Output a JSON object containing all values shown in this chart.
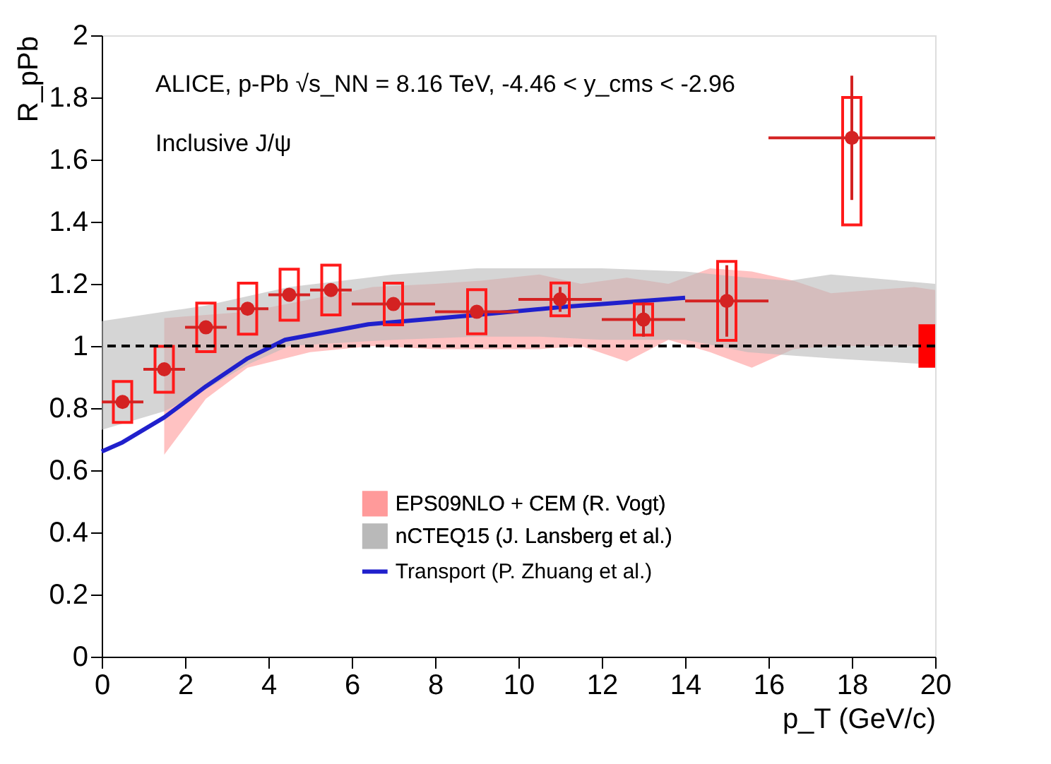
{
  "chart_data": {
    "type": "scatter",
    "xlabel": "p_T (GeV/c)",
    "ylabel": "R_pPb",
    "annotations": [
      "ALICE, p-Pb √s_NN = 8.16 TeV, -4.46 < y_cms < -2.96",
      "Inclusive J/ψ"
    ],
    "xlim": [
      0,
      20
    ],
    "xticks": [
      0,
      2,
      4,
      6,
      8,
      10,
      12,
      14,
      16,
      18,
      20
    ],
    "ylim": [
      0,
      2
    ],
    "yticks": [
      0,
      0.2,
      0.4,
      0.6,
      0.8,
      1,
      1.2,
      1.4,
      1.6,
      1.8,
      2
    ],
    "grid": false,
    "legend": "bottom",
    "ref_lines": [
      {
        "axis": "y",
        "value": 1,
        "color": "#000000",
        "line_style": "dashed"
      }
    ],
    "series": [
      {
        "name": "EPS09NLO + CEM (R. Vogt)",
        "type": "area",
        "color": "#ff9a9a",
        "x": [
          1.5,
          2.5,
          3.5,
          5,
          6.5,
          8,
          9.1,
          10.5,
          11.5,
          12.6,
          13.6,
          14.6,
          15.6,
          16.6,
          17.5,
          18.5,
          19.5,
          20
        ],
        "values": [
          null,
          null,
          null,
          null,
          null,
          null,
          null,
          null,
          null,
          null,
          null,
          null,
          null,
          null,
          null,
          null,
          null,
          null
        ],
        "upper": [
          1.09,
          1.1,
          1.11,
          1.15,
          1.19,
          1.2,
          1.21,
          1.23,
          1.2,
          1.22,
          1.2,
          1.25,
          1.24,
          1.21,
          1.17,
          1.18,
          1.19,
          1.18
        ],
        "lower": [
          0.65,
          0.83,
          0.93,
          0.98,
          1.0,
          0.99,
          0.99,
          0.99,
          1.0,
          0.95,
          1.02,
          0.98,
          0.93,
          0.99,
          1.0,
          1.0,
          1.0,
          1.0
        ]
      },
      {
        "name": "nCTEQ15 (J. Lansberg et al.)",
        "type": "area",
        "color": "#b9b9b9",
        "x": [
          0,
          1.5,
          2.5,
          3.5,
          4.5,
          7,
          9,
          10.5,
          12,
          14,
          15.5,
          16.5,
          17.5,
          20
        ],
        "values": [
          null,
          null,
          null,
          null,
          null,
          null,
          null,
          null,
          null,
          null,
          null,
          null,
          null,
          null
        ],
        "upper": [
          1.08,
          1.11,
          1.13,
          1.16,
          1.19,
          1.23,
          1.25,
          1.25,
          1.25,
          1.24,
          1.22,
          1.21,
          1.23,
          1.2
        ],
        "lower": [
          0.73,
          0.79,
          0.86,
          0.94,
          1.0,
          1.02,
          1.03,
          1.03,
          1.02,
          1.02,
          0.98,
          0.97,
          0.96,
          0.94
        ]
      },
      {
        "name": "Transport (P. Zhuang et al.)",
        "type": "line",
        "color": "#2020cc",
        "line_style": "solid",
        "x": [
          0,
          0.5,
          1.5,
          2.5,
          3.5,
          4.4,
          6.4,
          9,
          11,
          14
        ],
        "values": [
          0.66,
          0.69,
          0.77,
          0.87,
          0.96,
          1.02,
          1.07,
          1.1,
          1.125,
          1.155
        ]
      },
      {
        "type": "bar",
        "color": "#ff1a1a",
        "x": [
          0.5,
          1.5,
          2.5,
          3.5,
          4.5,
          5.5,
          7,
          9,
          11,
          13,
          15,
          18
        ],
        "base": [
          0.754,
          0.851,
          0.982,
          1.038,
          1.083,
          1.1,
          1.068,
          1.039,
          1.097,
          1.035,
          1.018,
          1.39
        ],
        "values": [
          0.132,
          0.148,
          0.156,
          0.164,
          0.164,
          0.16,
          0.134,
          0.142,
          0.106,
          0.1,
          0.254,
          0.41
        ]
      },
      {
        "color": "#d42222",
        "marker": "circle",
        "x": [
          0.5,
          1.5,
          2.5,
          3.5,
          4.5,
          5.5,
          7,
          9,
          11,
          13,
          15,
          18
        ],
        "values": [
          0.82,
          0.925,
          1.06,
          1.12,
          1.165,
          1.18,
          1.135,
          1.11,
          1.15,
          1.085,
          1.145,
          1.67
        ],
        "xerrors": [
          0.5,
          0.5,
          0.5,
          0.5,
          0.5,
          0.5,
          1,
          1,
          1,
          1,
          1,
          2
        ],
        "errors": [
          null,
          null,
          null,
          null,
          null,
          null,
          null,
          null,
          0.04,
          0.055,
          0.115,
          0.2
        ]
      },
      {
        "type": "area",
        "color": "#ff0000",
        "x": [
          19.6,
          20
        ],
        "values": [
          null,
          null
        ],
        "upper": [
          1.07,
          1.07
        ],
        "lower": [
          0.93,
          0.93
        ]
      }
    ]
  }
}
